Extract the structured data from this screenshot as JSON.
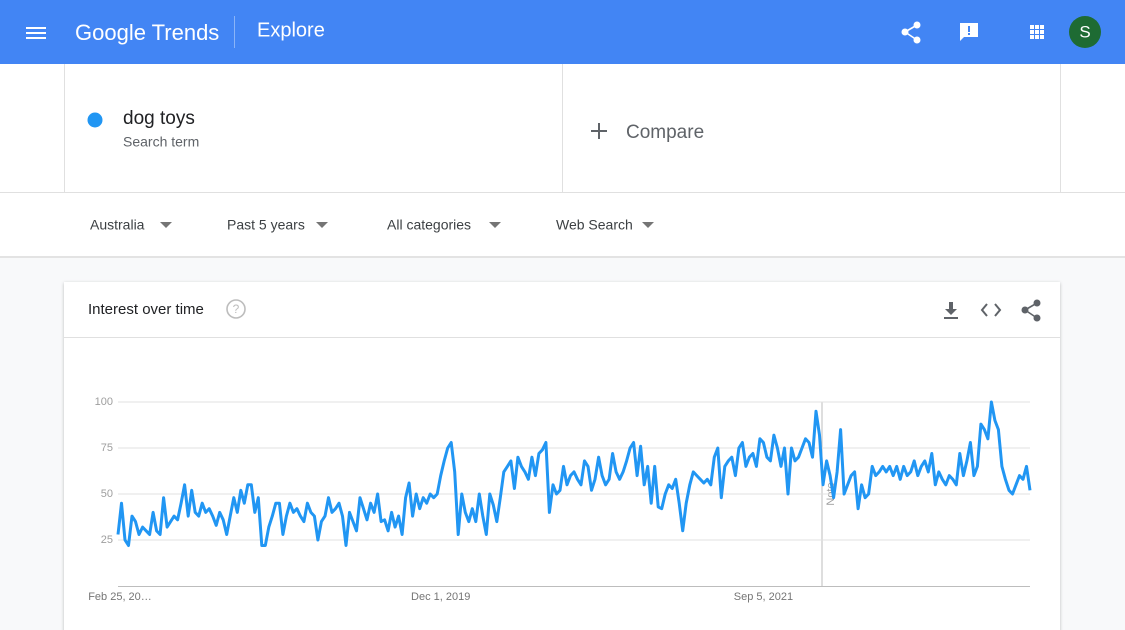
{
  "header": {
    "brand": "Google Trends",
    "section": "Explore",
    "avatar": "S"
  },
  "search": {
    "hint": "Search term",
    "compare": "Compare"
  },
  "filters": [
    "Australia",
    "Past 5 years",
    "All categories",
    "Web Search"
  ],
  "chart_data": {
    "type": "line",
    "title": "Interest over time",
    "annotation": "Note",
    "categories": [
      "Feb 25, 20…",
      null,
      null,
      null,
      null,
      null,
      null,
      null,
      null,
      null,
      null,
      null,
      null,
      null,
      null,
      null,
      null,
      null,
      null,
      null,
      null,
      null,
      null,
      null,
      null,
      null,
      null,
      null,
      null,
      null,
      null,
      null,
      null,
      null,
      null,
      null,
      null,
      null,
      null,
      null,
      null,
      null,
      null,
      null,
      null,
      null,
      null,
      null,
      null,
      null,
      null,
      null,
      null,
      null,
      null,
      null,
      null,
      null,
      null,
      null,
      null,
      null,
      null,
      null,
      null,
      null,
      null,
      null,
      null,
      null,
      null,
      null,
      null,
      null,
      null,
      null,
      null,
      null,
      null,
      null,
      null,
      null,
      null,
      null,
      null,
      null,
      null,
      null,
      null,
      null,
      null,
      null,
      "Dec 1, 2019",
      null,
      null,
      null,
      null,
      null,
      null,
      null,
      null,
      null,
      null,
      null,
      null,
      null,
      null,
      null,
      null,
      null,
      null,
      null,
      null,
      null,
      null,
      null,
      null,
      null,
      null,
      null,
      null,
      null,
      null,
      null,
      null,
      null,
      null,
      null,
      null,
      null,
      null,
      null,
      null,
      null,
      null,
      null,
      null,
      null,
      null,
      null,
      null,
      null,
      null,
      null,
      null,
      null,
      null,
      null,
      null,
      null,
      null,
      null,
      null,
      null,
      null,
      null,
      null,
      null,
      null,
      null,
      null,
      null,
      null,
      null,
      null,
      null,
      null,
      null,
      null,
      null,
      null,
      null,
      null,
      null,
      null,
      null,
      null,
      null,
      null,
      null,
      null,
      null,
      null,
      null,
      "Sep 5, 2021",
      null,
      null,
      null,
      null,
      null,
      null,
      null,
      null,
      null,
      null,
      null,
      null,
      null,
      null,
      null,
      null,
      null,
      null,
      null,
      null,
      null,
      null,
      null,
      null,
      null,
      null,
      null,
      null,
      null,
      null,
      null,
      null,
      null,
      null,
      null,
      null,
      null,
      null,
      null,
      null,
      null,
      null,
      null,
      null,
      null,
      null,
      null,
      null,
      null,
      null,
      null,
      null,
      null,
      null,
      null,
      null,
      null,
      null,
      null,
      null,
      null,
      null,
      null,
      null,
      null,
      null,
      null,
      null,
      null,
      null,
      null,
      null,
      null,
      null,
      null,
      null
    ],
    "series": [
      {
        "name": "dog toys",
        "color": "#2196f3",
        "values": [
          28,
          45,
          25,
          22,
          38,
          35,
          28,
          32,
          30,
          28,
          40,
          30,
          28,
          48,
          32,
          35,
          38,
          36,
          45,
          55,
          38,
          52,
          40,
          38,
          45,
          40,
          42,
          38,
          33,
          40,
          36,
          28,
          38,
          48,
          40,
          52,
          45,
          55,
          55,
          40,
          48,
          22,
          22,
          32,
          38,
          45,
          45,
          28,
          38,
          45,
          40,
          42,
          38,
          35,
          45,
          40,
          38,
          25,
          35,
          38,
          48,
          40,
          42,
          45,
          38,
          22,
          40,
          35,
          30,
          48,
          42,
          36,
          45,
          40,
          50,
          35,
          36,
          30,
          40,
          32,
          38,
          28,
          48,
          56,
          38,
          50,
          42,
          48,
          45,
          50,
          48,
          50,
          60,
          68,
          75,
          78,
          62,
          28,
          50,
          40,
          35,
          42,
          35,
          50,
          38,
          28,
          50,
          44,
          35,
          48,
          62,
          65,
          68,
          53,
          70,
          65,
          62,
          58,
          70,
          60,
          72,
          74,
          78,
          40,
          55,
          50,
          52,
          65,
          55,
          60,
          62,
          58,
          55,
          68,
          65,
          52,
          58,
          70,
          60,
          55,
          58,
          72,
          62,
          58,
          62,
          68,
          75,
          78,
          60,
          76,
          55,
          65,
          45,
          65,
          43,
          42,
          50,
          55,
          53,
          58,
          45,
          30,
          45,
          55,
          62,
          60,
          58,
          56,
          58,
          55,
          70,
          75,
          48,
          65,
          68,
          70,
          60,
          75,
          78,
          65,
          70,
          72,
          65,
          80,
          78,
          70,
          68,
          82,
          75,
          65,
          75,
          50,
          75,
          68,
          70,
          75,
          80,
          78,
          70,
          95,
          82,
          55,
          68,
          60,
          48,
          62,
          85,
          50,
          55,
          60,
          62,
          42,
          55,
          48,
          50,
          65,
          60,
          62,
          65,
          62,
          65,
          60,
          65,
          58,
          65,
          60,
          62,
          68,
          60,
          65,
          68,
          62,
          72,
          55,
          62,
          58,
          55,
          60,
          58,
          55,
          72,
          60,
          68,
          78,
          60,
          65,
          88,
          85,
          80,
          100,
          90,
          85,
          65,
          58,
          52,
          50,
          55,
          60,
          58,
          65,
          52
        ]
      }
    ],
    "ylim": [
      0,
      100
    ],
    "yticks": [
      25,
      50,
      75,
      100
    ],
    "grid": true
  }
}
